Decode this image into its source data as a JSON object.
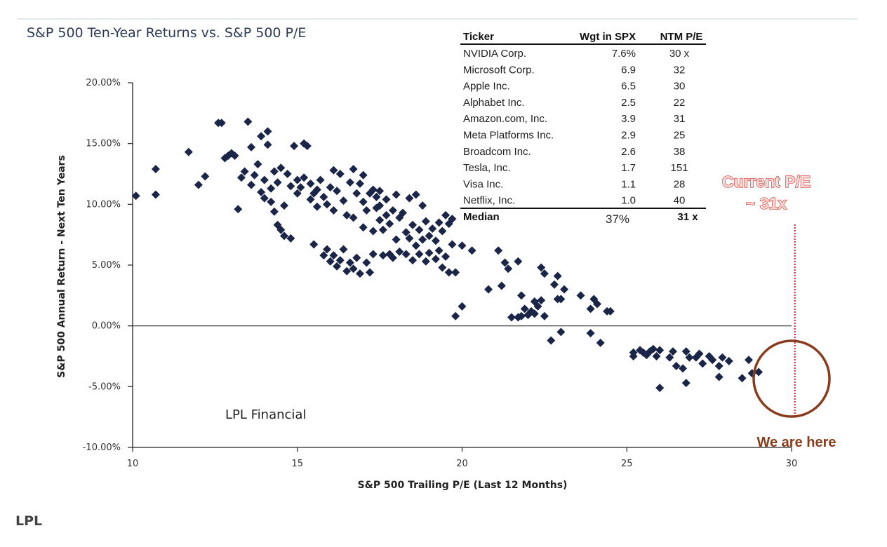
{
  "chart_data": {
    "type": "scatter",
    "title": "S&P 500 Ten-Year Returns vs. S&P 500 P/E",
    "xlabel": "S&P 500 Trailing P/E (Last 12 Months)",
    "ylabel": "S&P 500 Annual Return - Next Ten Years",
    "xlim": [
      10,
      30
    ],
    "ylim": [
      -10,
      20
    ],
    "x_ticks": [
      "10",
      "15",
      "20",
      "25",
      "30"
    ],
    "y_ticks": [
      "20.00%",
      "15.00%",
      "10.00%",
      "5.00%",
      "0.00%",
      "-5.00%",
      "-10.00%"
    ],
    "grid": false,
    "zero_line": true,
    "marker_color": "#1a2547",
    "points": [
      [
        10.1,
        10.7
      ],
      [
        10.7,
        12.9
      ],
      [
        10.7,
        10.8
      ],
      [
        11.7,
        14.3
      ],
      [
        12.0,
        11.6
      ],
      [
        12.2,
        12.3
      ],
      [
        12.6,
        16.7
      ],
      [
        12.7,
        16.7
      ],
      [
        12.8,
        13.8
      ],
      [
        12.9,
        14.0
      ],
      [
        13.0,
        14.2
      ],
      [
        13.1,
        14.0
      ],
      [
        13.2,
        9.6
      ],
      [
        13.3,
        12.2
      ],
      [
        13.4,
        12.7
      ],
      [
        13.5,
        16.8
      ],
      [
        13.6,
        11.6
      ],
      [
        13.6,
        14.7
      ],
      [
        13.7,
        12.4
      ],
      [
        13.8,
        13.3
      ],
      [
        13.9,
        15.6
      ],
      [
        13.9,
        11.0
      ],
      [
        14.0,
        12.0
      ],
      [
        14.0,
        10.5
      ],
      [
        14.1,
        16.0
      ],
      [
        14.1,
        14.9
      ],
      [
        14.2,
        11.3
      ],
      [
        14.2,
        10.2
      ],
      [
        14.3,
        12.7
      ],
      [
        14.3,
        9.4
      ],
      [
        14.4,
        11.8
      ],
      [
        14.5,
        13.0
      ],
      [
        14.4,
        8.3
      ],
      [
        14.5,
        7.9
      ],
      [
        14.6,
        9.9
      ],
      [
        14.7,
        12.5
      ],
      [
        14.6,
        7.4
      ],
      [
        14.8,
        11.5
      ],
      [
        14.8,
        7.2
      ],
      [
        14.9,
        14.8
      ],
      [
        15.0,
        10.9
      ],
      [
        15.0,
        12.0
      ],
      [
        15.1,
        11.4
      ],
      [
        15.2,
        12.2
      ],
      [
        15.2,
        15.0
      ],
      [
        15.3,
        14.8
      ],
      [
        15.4,
        11.7
      ],
      [
        15.4,
        10.4
      ],
      [
        15.5,
        10.9
      ],
      [
        15.6,
        11.2
      ],
      [
        15.6,
        9.8
      ],
      [
        15.5,
        6.7
      ],
      [
        15.7,
        12.0
      ],
      [
        15.8,
        10.6
      ],
      [
        15.8,
        5.8
      ],
      [
        15.9,
        10.0
      ],
      [
        15.9,
        6.3
      ],
      [
        16.0,
        11.4
      ],
      [
        16.0,
        5.3
      ],
      [
        16.1,
        12.8
      ],
      [
        16.1,
        9.5
      ],
      [
        16.1,
        5.8
      ],
      [
        16.2,
        11.1
      ],
      [
        16.2,
        4.9
      ],
      [
        16.3,
        12.5
      ],
      [
        16.3,
        5.4
      ],
      [
        16.4,
        10.3
      ],
      [
        16.4,
        6.3
      ],
      [
        16.5,
        9.1
      ],
      [
        16.5,
        4.5
      ],
      [
        16.6,
        11.8
      ],
      [
        16.6,
        5.2
      ],
      [
        16.7,
        12.9
      ],
      [
        16.7,
        8.9
      ],
      [
        16.7,
        4.7
      ],
      [
        16.8,
        10.9
      ],
      [
        16.8,
        5.6
      ],
      [
        16.9,
        11.7
      ],
      [
        16.9,
        4.3
      ],
      [
        17.0,
        10.2
      ],
      [
        17.0,
        12.4
      ],
      [
        17.0,
        8.1
      ],
      [
        17.1,
        9.5
      ],
      [
        17.1,
        5.2
      ],
      [
        17.2,
        10.9
      ],
      [
        17.2,
        4.4
      ],
      [
        17.3,
        11.2
      ],
      [
        17.3,
        7.8
      ],
      [
        17.3,
        5.9
      ],
      [
        17.4,
        9.7
      ],
      [
        17.4,
        10.6
      ],
      [
        17.5,
        8.7
      ],
      [
        17.5,
        11.1
      ],
      [
        17.5,
        9.9
      ],
      [
        17.6,
        7.9
      ],
      [
        17.6,
        5.8
      ],
      [
        17.7,
        10.4
      ],
      [
        17.7,
        9.1
      ],
      [
        17.8,
        8.4
      ],
      [
        17.8,
        5.9
      ],
      [
        17.9,
        9.5
      ],
      [
        17.9,
        5.6
      ],
      [
        18.0,
        10.8
      ],
      [
        18.0,
        7.1
      ],
      [
        18.1,
        8.9
      ],
      [
        18.1,
        6.1
      ],
      [
        18.2,
        9.3
      ],
      [
        18.3,
        7.7
      ],
      [
        18.3,
        5.9
      ],
      [
        18.4,
        10.5
      ],
      [
        18.4,
        7.2
      ],
      [
        18.5,
        5.4
      ],
      [
        18.5,
        8.3
      ],
      [
        18.6,
        6.6
      ],
      [
        18.6,
        10.8
      ],
      [
        18.7,
        7.9
      ],
      [
        18.7,
        5.9
      ],
      [
        18.8,
        9.9
      ],
      [
        18.8,
        7.1
      ],
      [
        18.9,
        5.3
      ],
      [
        18.9,
        8.6
      ],
      [
        19.0,
        7.4
      ],
      [
        19.0,
        6.0
      ],
      [
        19.1,
        8.0
      ],
      [
        19.2,
        5.5
      ],
      [
        19.2,
        7.0
      ],
      [
        19.3,
        8.5
      ],
      [
        19.3,
        6.2
      ],
      [
        19.4,
        4.8
      ],
      [
        19.4,
        7.8
      ],
      [
        19.5,
        9.1
      ],
      [
        19.5,
        5.7
      ],
      [
        19.6,
        8.4
      ],
      [
        19.6,
        4.4
      ],
      [
        19.7,
        6.7
      ],
      [
        19.7,
        8.8
      ],
      [
        19.8,
        4.4
      ],
      [
        19.8,
        0.8
      ],
      [
        20.0,
        1.6
      ],
      [
        20.0,
        6.6
      ],
      [
        20.3,
        6.2
      ],
      [
        20.8,
        3.0
      ],
      [
        21.1,
        6.2
      ],
      [
        21.2,
        3.3
      ],
      [
        21.3,
        5.2
      ],
      [
        21.4,
        4.7
      ],
      [
        21.5,
        0.7
      ],
      [
        21.7,
        0.7
      ],
      [
        21.7,
        5.3
      ],
      [
        21.8,
        2.5
      ],
      [
        21.8,
        0.8
      ],
      [
        21.9,
        1.4
      ],
      [
        22.0,
        0.9
      ],
      [
        22.1,
        1.2
      ],
      [
        22.2,
        1.0
      ],
      [
        22.2,
        2.0
      ],
      [
        22.3,
        1.6
      ],
      [
        22.4,
        2.1
      ],
      [
        22.4,
        4.8
      ],
      [
        22.5,
        4.3
      ],
      [
        22.5,
        0.8
      ],
      [
        22.7,
        -1.2
      ],
      [
        22.8,
        3.4
      ],
      [
        22.9,
        2.2
      ],
      [
        22.9,
        4.1
      ],
      [
        23.0,
        -0.5
      ],
      [
        23.0,
        2.2
      ],
      [
        23.1,
        3.0
      ],
      [
        23.6,
        2.5
      ],
      [
        23.9,
        -0.6
      ],
      [
        23.9,
        1.4
      ],
      [
        24.0,
        2.2
      ],
      [
        24.1,
        1.8
      ],
      [
        24.2,
        -1.4
      ],
      [
        24.4,
        1.2
      ],
      [
        24.5,
        1.2
      ],
      [
        25.2,
        -2.2
      ],
      [
        25.2,
        -2.5
      ],
      [
        25.4,
        -2.0
      ],
      [
        25.5,
        -2.2
      ],
      [
        25.6,
        -2.4
      ],
      [
        25.7,
        -2.1
      ],
      [
        25.8,
        -1.9
      ],
      [
        25.9,
        -2.5
      ],
      [
        26.0,
        -2.0
      ],
      [
        26.0,
        -5.1
      ],
      [
        26.3,
        -2.6
      ],
      [
        26.4,
        -2.1
      ],
      [
        26.5,
        -3.3
      ],
      [
        26.7,
        -3.5
      ],
      [
        26.8,
        -4.7
      ],
      [
        26.8,
        -2.1
      ],
      [
        26.9,
        -2.6
      ],
      [
        27.1,
        -2.6
      ],
      [
        27.2,
        -2.3
      ],
      [
        27.3,
        -3.1
      ],
      [
        27.5,
        -2.5
      ],
      [
        27.6,
        -2.8
      ],
      [
        27.8,
        -3.3
      ],
      [
        27.8,
        -4.2
      ],
      [
        27.9,
        -2.6
      ],
      [
        28.1,
        -2.9
      ],
      [
        28.5,
        -4.3
      ],
      [
        28.7,
        -2.8
      ],
      [
        28.8,
        -3.9
      ],
      [
        29.0,
        -3.8
      ]
    ],
    "annotations": {
      "current_pe_line1": "Current P/E",
      "current_pe_line2": "~ 31x",
      "current_pe_x": 30.1,
      "we_are_here": "We are here",
      "watermark": "LPL Financial"
    },
    "table": {
      "headers": [
        "Ticker",
        "Wgt in SPX",
        "NTM P/E"
      ],
      "rows": [
        [
          "NVIDIA Corp.",
          "7.6%",
          "30 x"
        ],
        [
          "Microsoft Corp.",
          "6.9",
          "32"
        ],
        [
          "Apple Inc.",
          "6.5",
          "30"
        ],
        [
          "Alphabet Inc.",
          "2.5",
          "22"
        ],
        [
          "Amazon.com, Inc.",
          "3.9",
          "31"
        ],
        [
          "Meta Platforms Inc.",
          "2.9",
          "25"
        ],
        [
          "Broadcom Inc.",
          "2.6",
          "38"
        ],
        [
          "Tesla, Inc.",
          "1.7",
          "151"
        ],
        [
          "Visa Inc.",
          "1.1",
          "28"
        ],
        [
          "Netflix, Inc.",
          "1.0",
          "40"
        ]
      ],
      "footer": [
        "Median",
        "37%",
        "31 x"
      ]
    }
  },
  "footer_label": "LPL"
}
